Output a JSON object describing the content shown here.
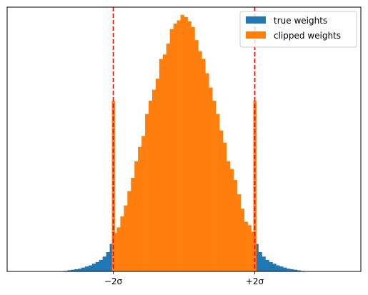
{
  "chart_data": {
    "type": "histogram",
    "xlim": [
      -5.0,
      5.0
    ],
    "ylim": [
      0,
      24.0
    ],
    "bin_width": 0.1,
    "vlines": [
      {
        "x": -2.0,
        "color": "#ff0000",
        "style": "dashed"
      },
      {
        "x": 2.0,
        "color": "#ff0000",
        "style": "dashed"
      }
    ],
    "x_ticks": [
      {
        "value": -2.0,
        "label": "−2σ"
      },
      {
        "value": 2.0,
        "label": "+2σ"
      }
    ],
    "y_ticks": [],
    "legend": {
      "placement": "top-right",
      "entries": [
        {
          "label": "true weights",
          "color": "#1f77b4"
        },
        {
          "label": "clipped weights",
          "color": "#ff7f0e"
        }
      ]
    },
    "series": [
      {
        "name": "true weights",
        "color": "#1f77b4",
        "bins": [
          {
            "x0": -3.4,
            "x1": -3.3,
            "value": 0.05
          },
          {
            "x0": -3.3,
            "x1": -3.2,
            "value": 0.1
          },
          {
            "x0": -3.2,
            "x1": -3.1,
            "value": 0.15
          },
          {
            "x0": -3.1,
            "x1": -3.0,
            "value": 0.2
          },
          {
            "x0": -3.0,
            "x1": -2.9,
            "value": 0.25
          },
          {
            "x0": -2.9,
            "x1": -2.8,
            "value": 0.35
          },
          {
            "x0": -2.8,
            "x1": -2.7,
            "value": 0.45
          },
          {
            "x0": -2.7,
            "x1": -2.6,
            "value": 0.55
          },
          {
            "x0": -2.6,
            "x1": -2.5,
            "value": 0.7
          },
          {
            "x0": -2.5,
            "x1": -2.4,
            "value": 0.85
          },
          {
            "x0": -2.4,
            "x1": -2.3,
            "value": 1.05
          },
          {
            "x0": -2.3,
            "x1": -2.2,
            "value": 1.35
          },
          {
            "x0": -2.2,
            "x1": -2.1,
            "value": 1.75
          },
          {
            "x0": -2.1,
            "x1": -2.0,
            "value": 2.5
          },
          {
            "x0": 2.0,
            "x1": 2.1,
            "value": 2.5
          },
          {
            "x0": 2.1,
            "x1": 2.2,
            "value": 1.75
          },
          {
            "x0": 2.2,
            "x1": 2.3,
            "value": 1.35
          },
          {
            "x0": 2.3,
            "x1": 2.4,
            "value": 1.05
          },
          {
            "x0": 2.4,
            "x1": 2.5,
            "value": 0.85
          },
          {
            "x0": 2.5,
            "x1": 2.6,
            "value": 0.7
          },
          {
            "x0": 2.6,
            "x1": 2.7,
            "value": 0.55
          },
          {
            "x0": 2.7,
            "x1": 2.8,
            "value": 0.45
          },
          {
            "x0": 2.8,
            "x1": 2.9,
            "value": 0.35
          },
          {
            "x0": 2.9,
            "x1": 3.0,
            "value": 0.25
          },
          {
            "x0": 3.0,
            "x1": 3.1,
            "value": 0.2
          },
          {
            "x0": 3.1,
            "x1": 3.2,
            "value": 0.15
          },
          {
            "x0": 3.2,
            "x1": 3.3,
            "value": 0.1
          },
          {
            "x0": 3.3,
            "x1": 3.4,
            "value": 0.05
          }
        ]
      },
      {
        "name": "clipped weights",
        "color": "#ff7f0e",
        "bins": [
          {
            "x0": -2.04,
            "x1": -1.96,
            "value": 15.5
          },
          {
            "x0": -1.96,
            "x1": -1.9,
            "value": 3.5
          },
          {
            "x0": -1.9,
            "x1": -1.8,
            "value": 4.0
          },
          {
            "x0": -1.8,
            "x1": -1.7,
            "value": 5.0
          },
          {
            "x0": -1.7,
            "x1": -1.6,
            "value": 6.0
          },
          {
            "x0": -1.6,
            "x1": -1.5,
            "value": 7.3
          },
          {
            "x0": -1.5,
            "x1": -1.4,
            "value": 8.5
          },
          {
            "x0": -1.4,
            "x1": -1.3,
            "value": 10.0
          },
          {
            "x0": -1.3,
            "x1": -1.2,
            "value": 11.3
          },
          {
            "x0": -1.2,
            "x1": -1.1,
            "value": 12.3
          },
          {
            "x0": -1.1,
            "x1": -1.0,
            "value": 14.3
          },
          {
            "x0": -1.0,
            "x1": -0.9,
            "value": 15.5
          },
          {
            "x0": -0.9,
            "x1": -0.8,
            "value": 16.5
          },
          {
            "x0": -0.8,
            "x1": -0.7,
            "value": 17.5
          },
          {
            "x0": -0.7,
            "x1": -0.6,
            "value": 19.3
          },
          {
            "x0": -0.6,
            "x1": -0.5,
            "value": 19.7
          },
          {
            "x0": -0.5,
            "x1": -0.4,
            "value": 20.7
          },
          {
            "x0": -0.4,
            "x1": -0.3,
            "value": 22.0
          },
          {
            "x0": -0.3,
            "x1": -0.2,
            "value": 22.5
          },
          {
            "x0": -0.2,
            "x1": -0.1,
            "value": 22.8
          },
          {
            "x0": -0.1,
            "x1": 0.0,
            "value": 23.3
          },
          {
            "x0": 0.0,
            "x1": 0.1,
            "value": 23.1
          },
          {
            "x0": 0.1,
            "x1": 0.2,
            "value": 22.7
          },
          {
            "x0": 0.2,
            "x1": 0.3,
            "value": 22.2
          },
          {
            "x0": 0.3,
            "x1": 0.4,
            "value": 21.0
          },
          {
            "x0": 0.4,
            "x1": 0.5,
            "value": 20.0
          },
          {
            "x0": 0.5,
            "x1": 0.6,
            "value": 19.3
          },
          {
            "x0": 0.6,
            "x1": 0.7,
            "value": 18.0
          },
          {
            "x0": 0.7,
            "x1": 0.8,
            "value": 16.7
          },
          {
            "x0": 0.8,
            "x1": 0.9,
            "value": 15.5
          },
          {
            "x0": 0.9,
            "x1": 1.0,
            "value": 14.3
          },
          {
            "x0": 1.0,
            "x1": 1.1,
            "value": 12.8
          },
          {
            "x0": 1.1,
            "x1": 1.2,
            "value": 11.7
          },
          {
            "x0": 1.2,
            "x1": 1.3,
            "value": 10.0
          },
          {
            "x0": 1.3,
            "x1": 1.4,
            "value": 9.3
          },
          {
            "x0": 1.4,
            "x1": 1.5,
            "value": 8.3
          },
          {
            "x0": 1.5,
            "x1": 1.6,
            "value": 7.0
          },
          {
            "x0": 1.6,
            "x1": 1.7,
            "value": 5.7
          },
          {
            "x0": 1.7,
            "x1": 1.8,
            "value": 4.5
          },
          {
            "x0": 1.8,
            "x1": 1.9,
            "value": 4.2
          },
          {
            "x0": 1.9,
            "x1": 1.96,
            "value": 3.6
          },
          {
            "x0": 1.96,
            "x1": 2.04,
            "value": 15.5
          }
        ]
      }
    ]
  }
}
